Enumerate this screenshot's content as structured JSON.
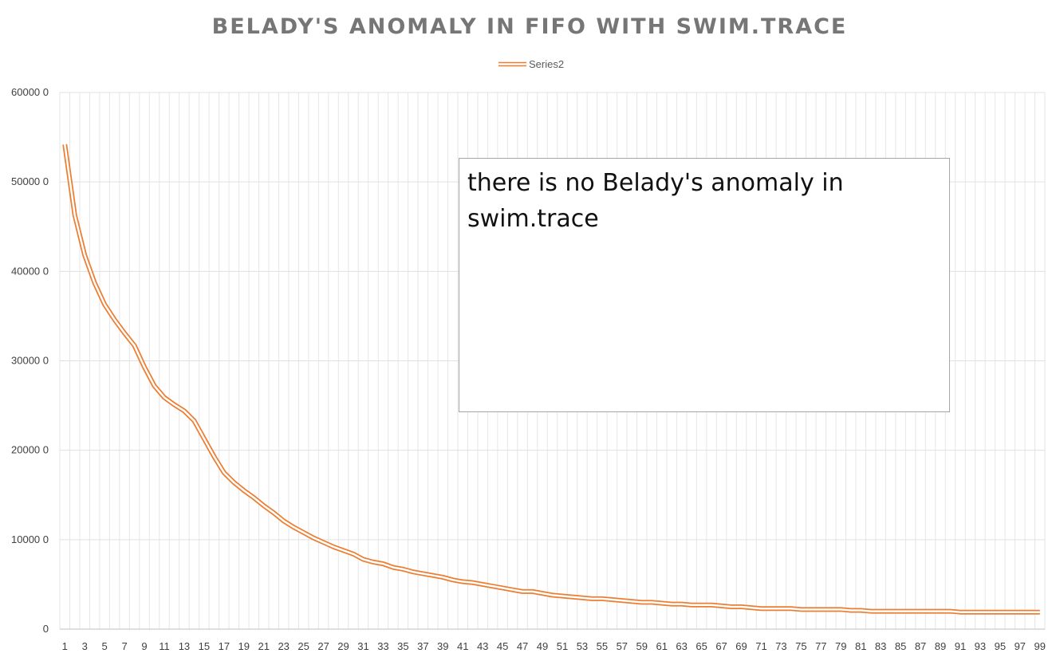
{
  "chart_data": {
    "type": "line",
    "title": "BELADY'S ANOMALY IN FIFO WITH SWIM.TRACE",
    "xlabel": "",
    "ylabel": "",
    "ylim": [
      0,
      60000
    ],
    "yticks": [
      0,
      10000,
      20000,
      30000,
      40000,
      50000,
      60000
    ],
    "ytick_labels": [
      "0",
      "10000 0",
      "20000 0",
      "30000 0",
      "40000 0",
      "50000 0",
      "60000 0"
    ],
    "x": [
      1,
      2,
      3,
      4,
      5,
      6,
      7,
      8,
      9,
      10,
      11,
      12,
      13,
      14,
      15,
      16,
      17,
      18,
      19,
      20,
      21,
      22,
      23,
      24,
      25,
      26,
      27,
      28,
      29,
      30,
      31,
      32,
      33,
      34,
      35,
      36,
      37,
      38,
      39,
      40,
      41,
      42,
      43,
      44,
      45,
      46,
      47,
      48,
      49,
      50,
      51,
      52,
      53,
      54,
      55,
      56,
      57,
      58,
      59,
      60,
      61,
      62,
      63,
      64,
      65,
      66,
      67,
      68,
      69,
      70,
      71,
      72,
      73,
      74,
      75,
      76,
      77,
      78,
      79,
      80,
      81,
      82,
      83,
      84,
      85,
      86,
      87,
      88,
      89,
      90,
      91,
      92,
      93,
      94,
      95,
      96,
      97,
      98,
      99
    ],
    "xtick_labels": [
      "1",
      "3",
      "5",
      "7",
      "9",
      "11",
      "13",
      "15",
      "17",
      "19",
      "21",
      "23",
      "25",
      "27",
      "29",
      "31",
      "33",
      "35",
      "37",
      "39",
      "41",
      "43",
      "45",
      "47",
      "49",
      "51",
      "53",
      "55",
      "57",
      "59",
      "61",
      "63",
      "65",
      "67",
      "69",
      "71",
      "73",
      "75",
      "77",
      "79",
      "81",
      "83",
      "85",
      "87",
      "89",
      "91",
      "93",
      "95",
      "97",
      "99"
    ],
    "legend": {
      "position": "top"
    },
    "grid": true,
    "series": [
      {
        "name": "Series2",
        "color": "#ED7D31",
        "values": [
          54200,
          46300,
          41800,
          38700,
          36300,
          34600,
          33100,
          31700,
          29300,
          27200,
          25900,
          25100,
          24400,
          23300,
          21300,
          19300,
          17500,
          16400,
          15500,
          14700,
          13800,
          13000,
          12100,
          11400,
          10800,
          10200,
          9700,
          9200,
          8800,
          8400,
          7800,
          7500,
          7300,
          6900,
          6700,
          6400,
          6200,
          6000,
          5800,
          5500,
          5300,
          5200,
          5000,
          4800,
          4600,
          4400,
          4200,
          4200,
          4000,
          3800,
          3700,
          3600,
          3500,
          3400,
          3400,
          3300,
          3200,
          3100,
          3000,
          3000,
          2900,
          2800,
          2800,
          2700,
          2700,
          2700,
          2600,
          2500,
          2500,
          2400,
          2300,
          2300,
          2300,
          2300,
          2200,
          2200,
          2200,
          2200,
          2200,
          2100,
          2100,
          2000,
          2000,
          2000,
          2000,
          2000,
          2000,
          2000,
          2000,
          2000,
          1900,
          1900,
          1900,
          1900,
          1900,
          1900,
          1900,
          1900,
          1900
        ]
      }
    ]
  },
  "annotation": {
    "text": "there is no Belady's anomaly in swim.trace"
  }
}
